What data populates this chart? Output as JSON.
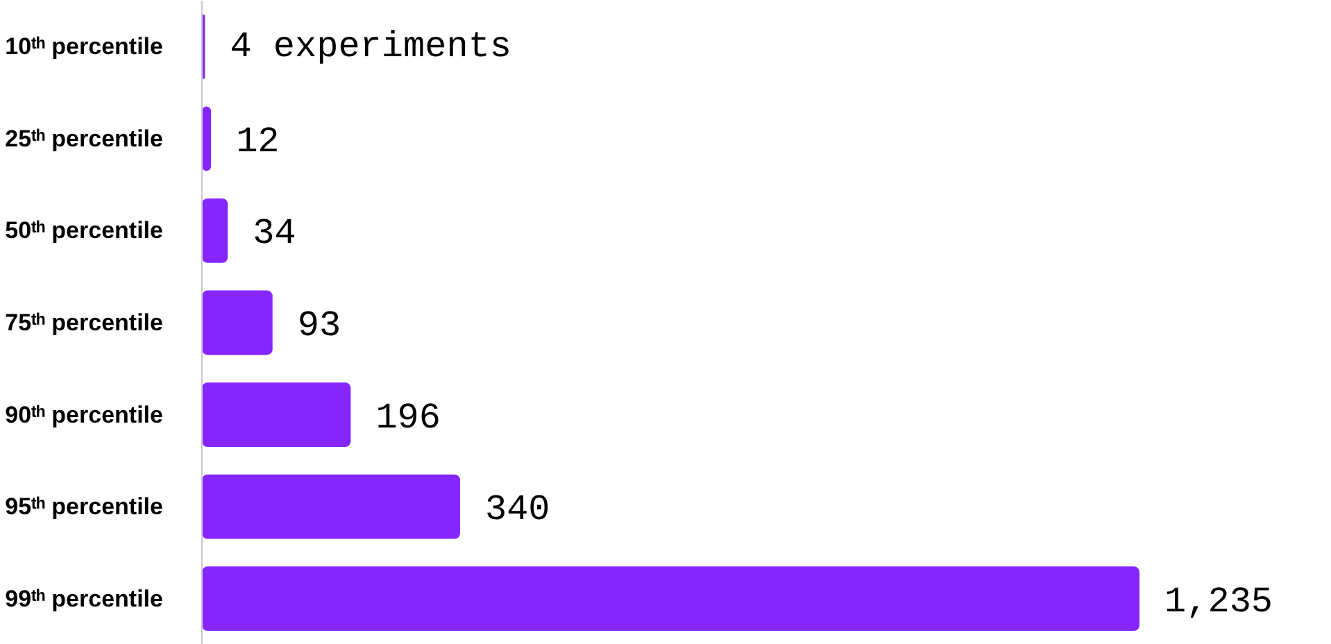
{
  "chart_data": {
    "type": "bar",
    "orientation": "horizontal",
    "categories": [
      "10ᵗʰ percentile",
      "25ᵗʰ percentile",
      "50ᵗʰ percentile",
      "75ᵗʰ percentile",
      "90ᵗʰ percentile",
      "95ᵗʰ percentile",
      "99ᵗʰ percentile"
    ],
    "values": [
      4,
      12,
      34,
      93,
      196,
      340,
      1235
    ],
    "value_labels": [
      "4 experiments",
      "12",
      "34",
      "93",
      "196",
      "340",
      "1,235"
    ],
    "color": "#8526ff",
    "grid": false
  }
}
